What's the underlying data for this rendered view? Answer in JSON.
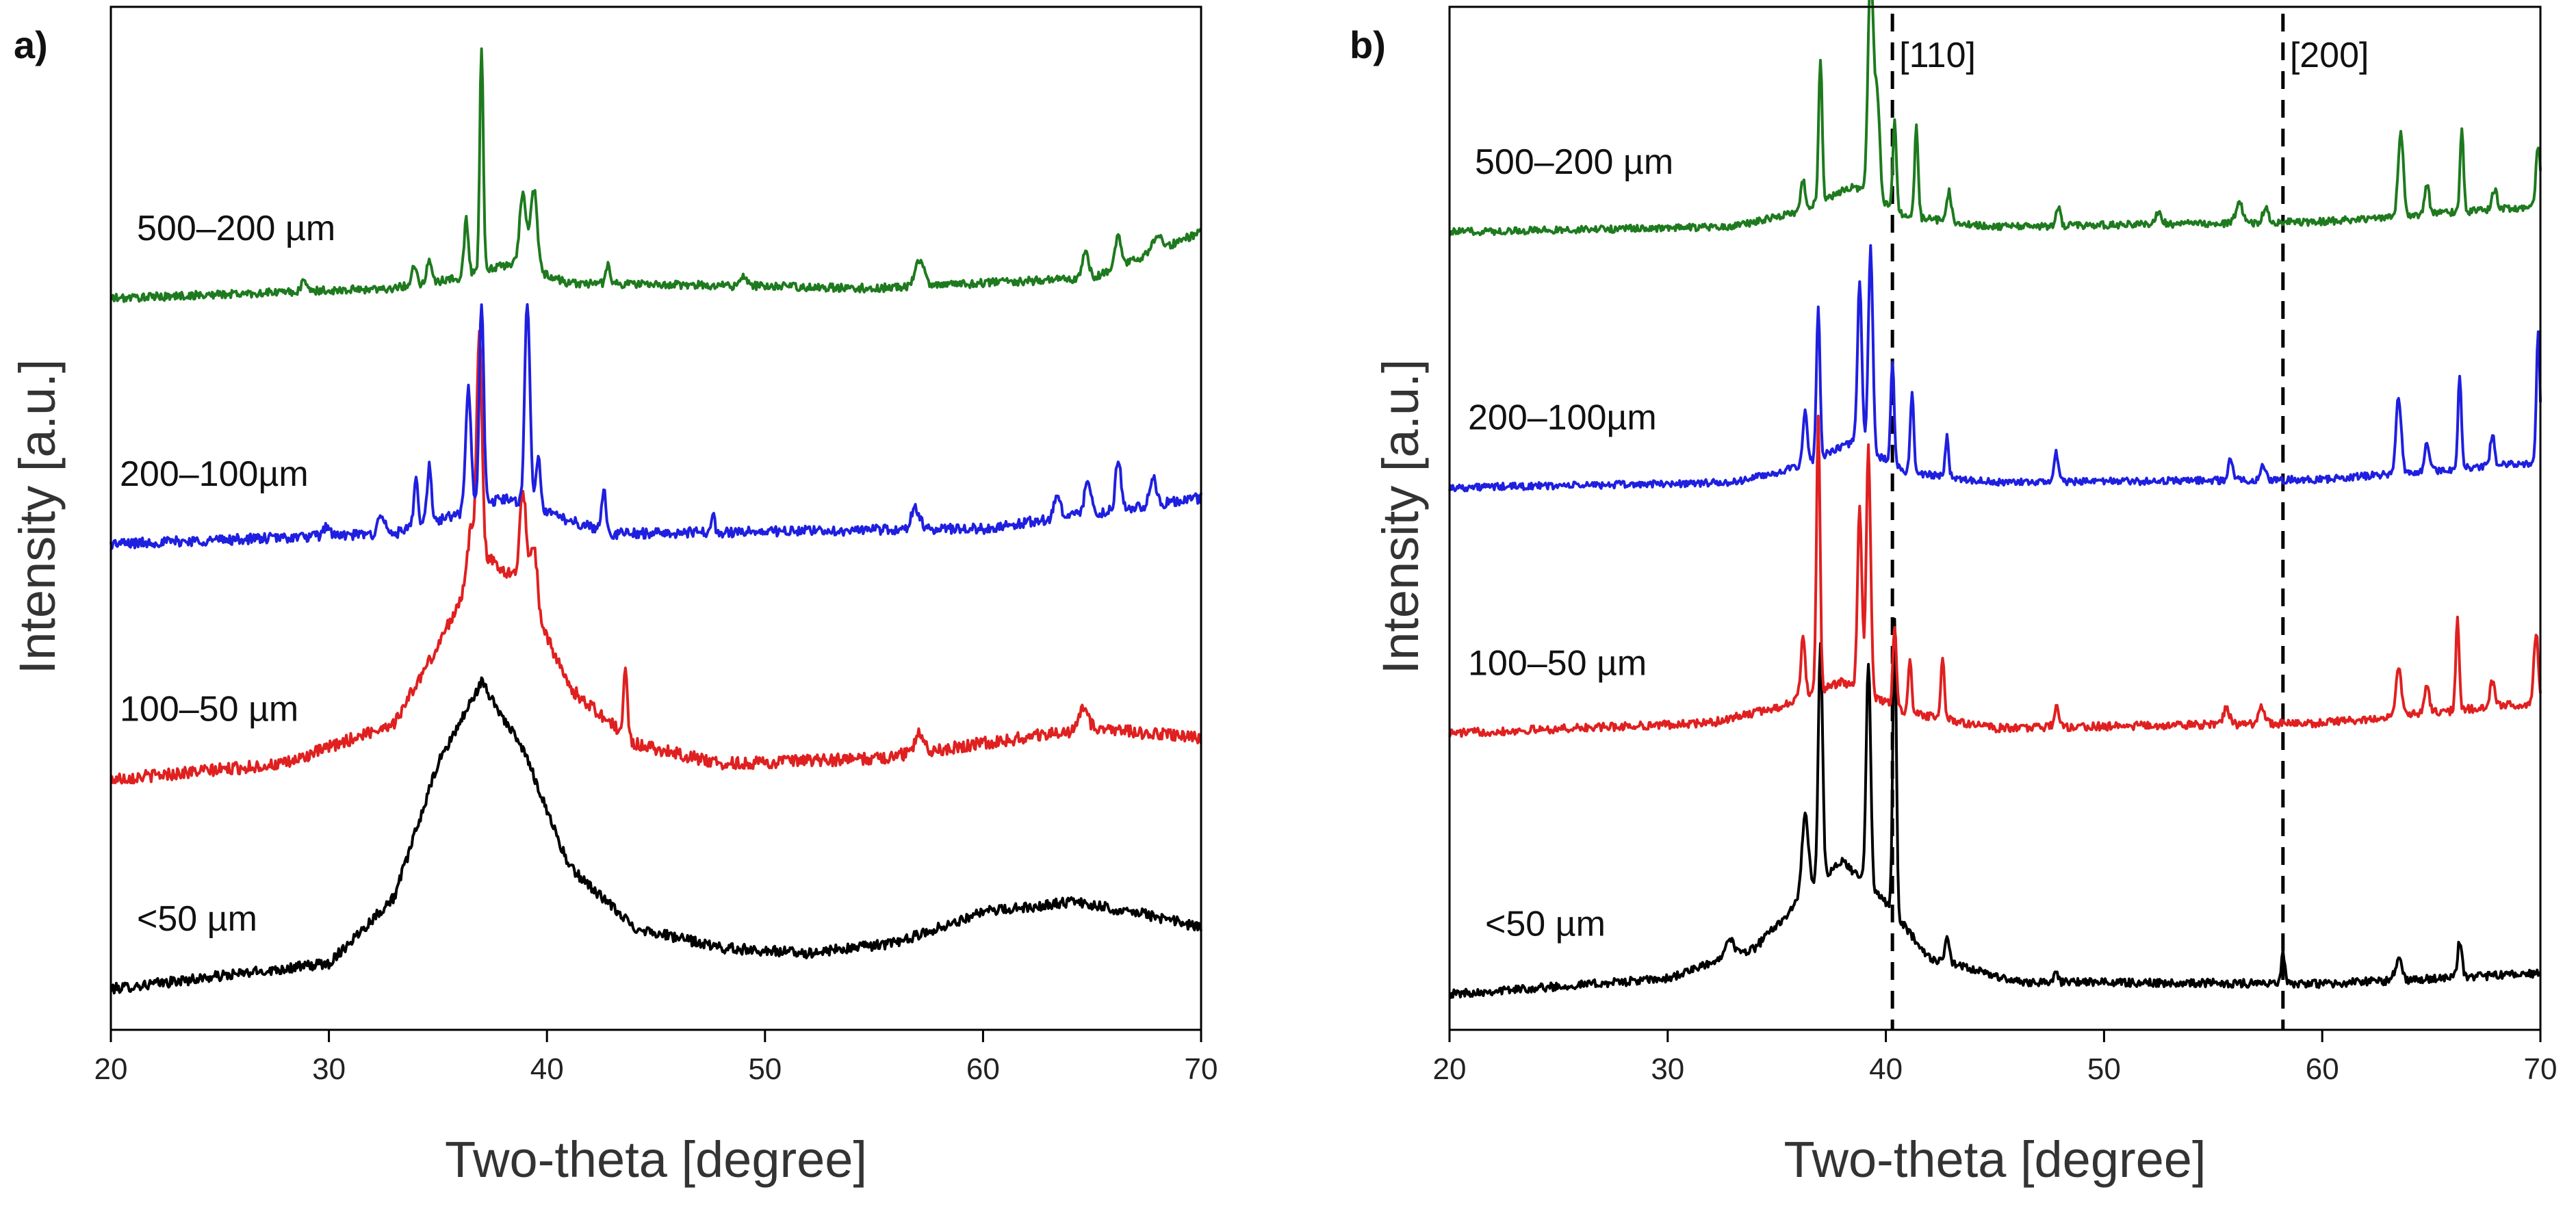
{
  "chart_data": [
    {
      "type": "line",
      "panel_label": "a)",
      "xlabel": "Two-theta [degree]",
      "ylabel": "Intensity [a.u.]",
      "xlim": [
        20,
        70
      ],
      "ylim": [
        0,
        10
      ],
      "x_ticks": [
        20,
        30,
        40,
        50,
        60,
        70
      ],
      "y_ticks_shown": false,
      "series": [
        {
          "name": "<50 µm",
          "label": "<50 µm",
          "color": "#000000",
          "offset": 0.4,
          "noise": 0.05,
          "baseline": [
            [
              20,
              0
            ],
            [
              30,
              0.25
            ],
            [
              33,
              0.9
            ],
            [
              35,
              2.2
            ],
            [
              37,
              3.0
            ],
            [
              39,
              2.3
            ],
            [
              41,
              1.2
            ],
            [
              44,
              0.6
            ],
            [
              48,
              0.4
            ],
            [
              52,
              0.35
            ],
            [
              56,
              0.45
            ],
            [
              60,
              0.75
            ],
            [
              64,
              0.85
            ],
            [
              67,
              0.75
            ],
            [
              70,
              0.6
            ]
          ],
          "peaks": []
        },
        {
          "name": "100–50 µm",
          "label": "100–50 µm",
          "color": "#e02020",
          "offset": 2.45,
          "noise": 0.06,
          "baseline": [
            [
              20,
              0
            ],
            [
              28,
              0.15
            ],
            [
              33,
              0.55
            ],
            [
              35,
              1.3
            ],
            [
              37,
              2.2
            ],
            [
              39,
              1.9
            ],
            [
              41,
              0.9
            ],
            [
              44,
              0.35
            ],
            [
              48,
              0.15
            ],
            [
              55,
              0.2
            ],
            [
              60,
              0.35
            ],
            [
              65,
              0.5
            ],
            [
              70,
              0.4
            ]
          ],
          "peaks": [
            [
              36.5,
              0.45,
              0.15
            ],
            [
              36.9,
              2.2,
              0.12
            ],
            [
              38.9,
              0.9,
              0.15
            ],
            [
              39.4,
              0.6,
              0.15
            ],
            [
              43.6,
              0.7,
              0.08
            ],
            [
              57.1,
              0.2,
              0.2
            ],
            [
              64.6,
              0.2,
              0.2
            ]
          ]
        },
        {
          "name": "200–100µm",
          "label": "200–100µm",
          "color": "#1f1fe0",
          "offset": 4.75,
          "noise": 0.05,
          "baseline": [
            [
              20,
              0
            ],
            [
              33,
              0.1
            ],
            [
              36,
              0.3
            ],
            [
              38,
              0.45
            ],
            [
              40,
              0.3
            ],
            [
              43,
              0.1
            ],
            [
              60,
              0.15
            ],
            [
              70,
              0.45
            ]
          ],
          "peaks": [
            [
              29.9,
              0.1,
              0.15
            ],
            [
              32.4,
              0.2,
              0.15
            ],
            [
              34.0,
              0.45,
              0.1
            ],
            [
              34.6,
              0.55,
              0.1
            ],
            [
              36.4,
              1.2,
              0.12
            ],
            [
              37.0,
              2.0,
              0.1
            ],
            [
              39.1,
              2.0,
              0.12
            ],
            [
              39.6,
              0.5,
              0.12
            ],
            [
              42.6,
              0.4,
              0.1
            ],
            [
              47.6,
              0.2,
              0.08
            ],
            [
              56.9,
              0.2,
              0.2
            ],
            [
              63.4,
              0.2,
              0.15
            ],
            [
              64.8,
              0.3,
              0.15
            ],
            [
              66.2,
              0.5,
              0.12
            ],
            [
              67.8,
              0.25,
              0.15
            ]
          ]
        },
        {
          "name": "500–200 µm",
          "label": "500–200 µm",
          "color": "#1e7a1e",
          "offset": 7.15,
          "noise": 0.04,
          "baseline": [
            [
              20,
              0
            ],
            [
              33,
              0.1
            ],
            [
              36,
              0.2
            ],
            [
              38.5,
              0.35
            ],
            [
              41,
              0.15
            ],
            [
              55,
              0.1
            ],
            [
              65,
              0.2
            ],
            [
              70,
              0.65
            ]
          ],
          "peaks": [
            [
              28.9,
              0.1,
              0.15
            ],
            [
              33.9,
              0.2,
              0.12
            ],
            [
              34.6,
              0.2,
              0.12
            ],
            [
              36.3,
              0.55,
              0.1
            ],
            [
              37.0,
              2.2,
              0.08
            ],
            [
              38.9,
              0.7,
              0.15
            ],
            [
              39.4,
              0.8,
              0.15
            ],
            [
              42.8,
              0.2,
              0.1
            ],
            [
              49.0,
              0.1,
              0.15
            ],
            [
              57.1,
              0.25,
              0.2
            ],
            [
              64.7,
              0.25,
              0.15
            ],
            [
              66.2,
              0.3,
              0.15
            ],
            [
              68.0,
              0.15,
              0.2
            ]
          ]
        }
      ]
    },
    {
      "type": "line",
      "panel_label": "b)",
      "xlabel": "Two-theta [degree]",
      "ylabel": "Intensity [a.u.]",
      "xlim": [
        20,
        70
      ],
      "ylim": [
        0,
        10
      ],
      "x_ticks": [
        20,
        30,
        40,
        50,
        60,
        70
      ],
      "y_ticks_shown": false,
      "annotations": [
        {
          "text": "[110]",
          "x": 40.3
        },
        {
          "text": "[200]",
          "x": 58.2
        }
      ],
      "series": [
        {
          "name": "<50 µm",
          "label": "<50 µm",
          "color": "#000000",
          "offset": 0.35,
          "noise": 0.04,
          "baseline": [
            [
              20,
              0
            ],
            [
              30,
              0.15
            ],
            [
              34,
              0.45
            ],
            [
              36,
              0.9
            ],
            [
              38,
              1.3
            ],
            [
              40,
              0.9
            ],
            [
              42,
              0.35
            ],
            [
              46,
              0.12
            ],
            [
              60,
              0.1
            ],
            [
              70,
              0.2
            ]
          ],
          "peaks": [
            [
              32.8,
              0.2,
              0.2
            ],
            [
              36.3,
              0.8,
              0.15
            ],
            [
              37.0,
              2.3,
              0.1
            ],
            [
              39.2,
              2.2,
              0.1
            ],
            [
              40.4,
              2.9,
              0.08
            ],
            [
              42.8,
              0.25,
              0.1
            ],
            [
              47.8,
              0.08,
              0.1
            ],
            [
              58.2,
              0.3,
              0.08
            ],
            [
              63.5,
              0.2,
              0.15
            ],
            [
              66.3,
              0.35,
              0.1
            ]
          ]
        },
        {
          "name": "100–50 µm",
          "label": "100–50 µm",
          "color": "#e02020",
          "offset": 2.9,
          "noise": 0.04,
          "baseline": [
            [
              20,
              0
            ],
            [
              32,
              0.1
            ],
            [
              35,
              0.25
            ],
            [
              38,
              0.5
            ],
            [
              41,
              0.2
            ],
            [
              45,
              0.05
            ],
            [
              60,
              0.1
            ],
            [
              70,
              0.3
            ]
          ],
          "peaks": [
            [
              36.2,
              0.6,
              0.1
            ],
            [
              36.9,
              2.7,
              0.08
            ],
            [
              38.8,
              1.8,
              0.1
            ],
            [
              39.2,
              2.4,
              0.1
            ],
            [
              40.4,
              0.8,
              0.08
            ],
            [
              41.1,
              0.5,
              0.08
            ],
            [
              42.6,
              0.6,
              0.08
            ],
            [
              47.8,
              0.2,
              0.1
            ],
            [
              55.6,
              0.15,
              0.15
            ],
            [
              57.2,
              0.15,
              0.15
            ],
            [
              63.5,
              0.5,
              0.12
            ],
            [
              64.8,
              0.3,
              0.1
            ],
            [
              66.2,
              0.9,
              0.08
            ],
            [
              67.8,
              0.25,
              0.12
            ],
            [
              69.8,
              0.7,
              0.1
            ]
          ]
        },
        {
          "name": "200–100µm",
          "label": "200–100µm",
          "color": "#1f1fe0",
          "offset": 5.3,
          "noise": 0.035,
          "baseline": [
            [
              20,
              0
            ],
            [
              33,
              0.05
            ],
            [
              36,
              0.2
            ],
            [
              38.5,
              0.45
            ],
            [
              41,
              0.15
            ],
            [
              45,
              0.05
            ],
            [
              60,
              0.08
            ],
            [
              70,
              0.25
            ]
          ],
          "peaks": [
            [
              36.3,
              0.5,
              0.1
            ],
            [
              36.9,
              1.5,
              0.08
            ],
            [
              38.8,
              1.6,
              0.1
            ],
            [
              39.3,
              2.0,
              0.1
            ],
            [
              40.3,
              1.0,
              0.08
            ],
            [
              41.2,
              0.8,
              0.08
            ],
            [
              42.8,
              0.4,
              0.08
            ],
            [
              47.8,
              0.3,
              0.1
            ],
            [
              55.8,
              0.2,
              0.12
            ],
            [
              57.3,
              0.15,
              0.12
            ],
            [
              63.5,
              0.75,
              0.12
            ],
            [
              64.8,
              0.3,
              0.1
            ],
            [
              66.3,
              0.9,
              0.08
            ],
            [
              67.8,
              0.3,
              0.1
            ],
            [
              69.9,
              1.3,
              0.08
            ]
          ]
        },
        {
          "name": "500–200 µm",
          "label": "500–200 µm",
          "color": "#1e7a1e",
          "offset": 7.8,
          "noise": 0.035,
          "baseline": [
            [
              20,
              0
            ],
            [
              33,
              0.05
            ],
            [
              36,
              0.2
            ],
            [
              38.5,
              0.45
            ],
            [
              41,
              0.15
            ],
            [
              45,
              0.05
            ],
            [
              60,
              0.1
            ],
            [
              70,
              0.25
            ]
          ],
          "peaks": [
            [
              36.2,
              0.3,
              0.1
            ],
            [
              37.0,
              1.4,
              0.08
            ],
            [
              39.3,
              2.2,
              0.12
            ],
            [
              39.6,
              1.0,
              0.12
            ],
            [
              40.4,
              0.9,
              0.08
            ],
            [
              41.4,
              0.9,
              0.08
            ],
            [
              42.9,
              0.3,
              0.1
            ],
            [
              47.9,
              0.2,
              0.1
            ],
            [
              52.5,
              0.1,
              0.15
            ],
            [
              56.2,
              0.2,
              0.15
            ],
            [
              57.4,
              0.15,
              0.12
            ],
            [
              63.6,
              0.8,
              0.12
            ],
            [
              64.8,
              0.3,
              0.1
            ],
            [
              66.4,
              0.8,
              0.08
            ],
            [
              67.9,
              0.2,
              0.12
            ],
            [
              69.9,
              0.6,
              0.1
            ]
          ]
        }
      ]
    }
  ]
}
